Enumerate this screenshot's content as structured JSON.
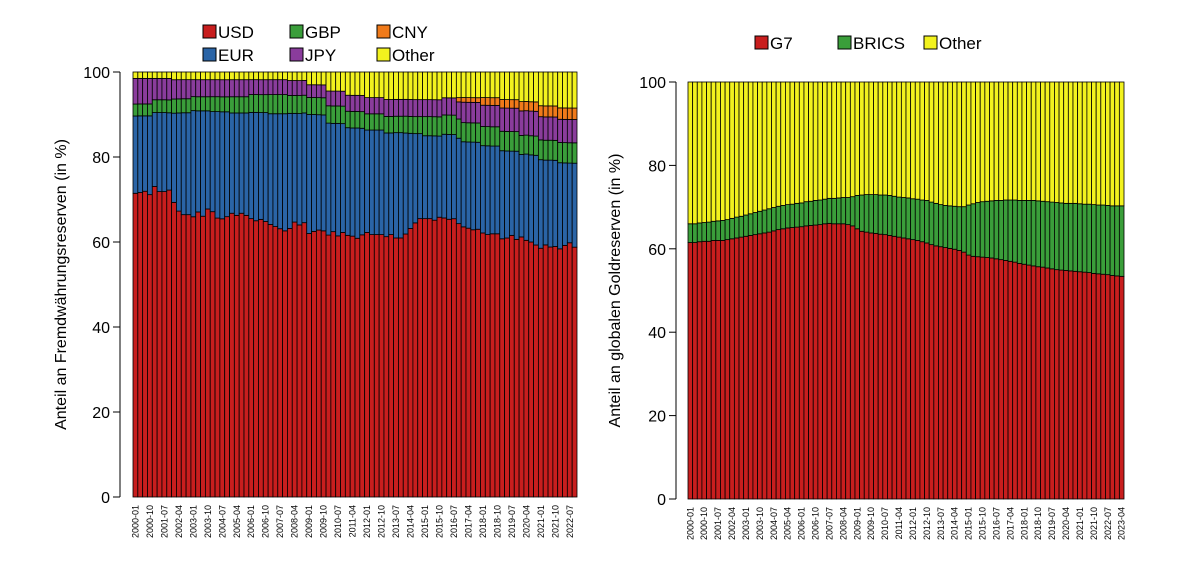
{
  "chart_data": [
    {
      "type": "bar",
      "stacked": true,
      "ylabel": "Anteil an Fremdwährungsreserven (in %)",
      "ylim": [
        0,
        100
      ],
      "yticks": [
        0,
        20,
        40,
        60,
        80,
        100
      ],
      "legend_placement": "top",
      "x_start": "2000-01",
      "x_end": "2022-10",
      "x_frequency": "quarterly",
      "xtick_labels": [
        "2000-01",
        "2000-10",
        "2001-07",
        "2002-04",
        "2003-01",
        "2003-10",
        "2004-07",
        "2005-04",
        "2006-01",
        "2006-10",
        "2007-07",
        "2008-04",
        "2009-01",
        "2009-10",
        "2010-07",
        "2011-04",
        "2012-01",
        "2012-10",
        "2013-07",
        "2014-04",
        "2015-01",
        "2015-10",
        "2016-07",
        "2017-04",
        "2018-01",
        "2018-10",
        "2019-07",
        "2020-04",
        "2021-01",
        "2021-10",
        "2022-07"
      ],
      "series": [
        {
          "name": "USD",
          "color": "#c81e1e",
          "values": [
            71.1,
            71.5,
            71.8,
            71.0,
            72.7,
            71.5,
            71.5,
            71.5,
            68.7,
            67.0,
            66.5,
            66.5,
            66.0,
            66.8,
            65.8,
            67.5,
            67.0,
            65.5,
            65.0,
            65.5,
            66.5,
            66.0,
            66.5,
            66.0,
            65.5,
            65.0,
            65.0,
            64.5,
            64.0,
            63.5,
            63.0,
            62.5,
            63.0,
            64.5,
            63.5,
            65.0,
            62.0,
            62.5,
            62.5,
            62.0,
            62.0,
            62.5,
            61.5,
            62.0,
            62.0,
            61.5,
            61.0,
            61.5,
            62.0,
            61.5,
            61.5,
            61.5,
            61.5,
            62.0,
            61.5,
            61.5,
            62.5,
            63.5,
            64.5,
            65.5,
            65.5,
            65.5,
            65.0,
            65.5,
            65.0,
            64.5,
            64.5,
            64.0,
            63.5,
            63.0,
            62.5,
            62.5,
            62.0,
            61.5,
            61.5,
            61.5,
            61.0,
            61.0,
            61.5,
            60.5,
            61.5,
            61.0,
            60.0,
            59.0,
            59.0,
            59.5,
            59.0,
            59.0,
            58.8,
            59.5,
            60.0,
            58.9
          ]
        },
        {
          "name": "EUR",
          "color": "#2a64a6",
          "values": [
            18.1,
            18.0,
            17.7,
            18.5,
            17.3,
            18.5,
            18.5,
            18.0,
            20.8,
            23.0,
            24.0,
            24.0,
            25.0,
            23.7,
            24.7,
            23.0,
            23.5,
            25.0,
            25.0,
            24.5,
            23.5,
            24.0,
            23.5,
            24.0,
            25.0,
            25.5,
            25.0,
            25.5,
            26.0,
            26.5,
            27.0,
            27.5,
            27.0,
            25.5,
            26.0,
            26.0,
            28.0,
            27.5,
            27.0,
            27.0,
            26.5,
            25.5,
            26.5,
            25.5,
            25.5,
            25.5,
            26.0,
            25.0,
            24.0,
            24.5,
            24.5,
            24.5,
            24.5,
            24.0,
            25.0,
            25.0,
            24.0,
            22.5,
            21.0,
            20.0,
            19.5,
            19.5,
            19.8,
            19.0,
            19.5,
            19.7,
            19.5,
            20.0,
            20.0,
            20.2,
            20.5,
            20.3,
            20.5,
            20.8,
            20.5,
            20.5,
            20.8,
            20.5,
            19.8,
            20.7,
            19.5,
            20.5,
            20.5,
            21.0,
            21.0,
            20.0,
            20.5,
            20.3,
            20.4,
            19.5,
            18.8,
            19.8
          ]
        },
        {
          "name": "GBP",
          "color": "#3a9e3a",
          "values": [
            2.8,
            2.8,
            2.8,
            2.8,
            3.0,
            3.0,
            3.0,
            3.0,
            3.3,
            3.3,
            3.3,
            3.3,
            3.3,
            3.3,
            3.3,
            3.3,
            3.5,
            3.5,
            3.5,
            3.5,
            3.8,
            3.8,
            3.8,
            3.8,
            4.2,
            4.2,
            4.2,
            4.2,
            4.5,
            4.5,
            4.5,
            4.5,
            4.2,
            4.2,
            4.2,
            4.2,
            4.0,
            4.0,
            4.0,
            4.0,
            4.1,
            4.1,
            4.1,
            4.1,
            3.9,
            3.9,
            3.9,
            3.9,
            3.8,
            3.8,
            3.8,
            3.8,
            3.9,
            3.9,
            3.9,
            3.9,
            4.0,
            4.0,
            4.0,
            4.0,
            4.5,
            4.5,
            4.5,
            4.5,
            4.5,
            4.5,
            4.5,
            4.5,
            4.5,
            4.5,
            4.5,
            4.5,
            4.5,
            4.5,
            4.5,
            4.5,
            4.6,
            4.6,
            4.6,
            4.6,
            4.5,
            4.5,
            4.5,
            4.5,
            4.7,
            4.7,
            4.7,
            4.7,
            4.8,
            4.8,
            4.8,
            4.8
          ]
        },
        {
          "name": "JPY",
          "color": "#8a3c9c",
          "values": [
            6.0,
            6.0,
            6.0,
            6.0,
            5.0,
            5.0,
            5.0,
            5.0,
            4.5,
            4.5,
            4.5,
            4.5,
            4.0,
            4.0,
            4.0,
            4.0,
            4.0,
            4.0,
            4.0,
            4.0,
            4.0,
            4.0,
            4.0,
            4.0,
            3.5,
            3.5,
            3.5,
            3.5,
            3.5,
            3.5,
            3.5,
            3.5,
            3.5,
            3.5,
            3.5,
            3.5,
            3.0,
            3.0,
            3.0,
            3.0,
            3.5,
            3.5,
            3.5,
            3.5,
            3.8,
            3.8,
            3.8,
            3.8,
            3.8,
            3.8,
            3.8,
            3.8,
            4.0,
            4.0,
            4.0,
            4.0,
            4.0,
            4.0,
            4.0,
            4.0,
            4.0,
            4.0,
            4.0,
            4.0,
            4.0,
            4.0,
            4.0,
            4.0,
            4.8,
            4.8,
            4.8,
            4.8,
            5.0,
            5.0,
            5.0,
            5.0,
            5.5,
            5.5,
            5.5,
            5.5,
            5.8,
            5.8,
            5.8,
            5.8,
            5.5,
            5.5,
            5.5,
            5.5,
            5.5,
            5.5,
            5.5,
            5.5
          ]
        },
        {
          "name": "CNY",
          "color": "#f07a1a",
          "values": [
            0,
            0,
            0,
            0,
            0,
            0,
            0,
            0,
            0,
            0,
            0,
            0,
            0,
            0,
            0,
            0,
            0,
            0,
            0,
            0,
            0,
            0,
            0,
            0,
            0,
            0,
            0,
            0,
            0,
            0,
            0,
            0,
            0,
            0,
            0,
            0,
            0,
            0,
            0,
            0,
            0,
            0,
            0,
            0,
            0,
            0,
            0,
            0,
            0,
            0,
            0,
            0,
            0,
            0,
            0,
            0,
            0,
            0,
            0,
            0,
            0,
            0,
            0,
            0,
            0,
            0,
            0,
            1.0,
            1.1,
            1.1,
            1.1,
            1.1,
            1.8,
            1.8,
            1.8,
            1.8,
            2.0,
            2.0,
            2.0,
            2.0,
            2.2,
            2.2,
            2.2,
            2.2,
            2.6,
            2.6,
            2.6,
            2.6,
            2.7,
            2.7,
            2.7,
            2.7
          ]
        },
        {
          "name": "Other",
          "color": "#f2f21e",
          "values": [
            1.5,
            1.5,
            1.5,
            1.5,
            1.5,
            1.5,
            1.5,
            1.5,
            1.8,
            1.8,
            1.8,
            1.8,
            1.8,
            1.8,
            1.8,
            1.8,
            1.8,
            1.8,
            1.8,
            1.8,
            1.8,
            1.8,
            1.8,
            1.8,
            1.8,
            1.8,
            1.8,
            1.8,
            1.8,
            1.8,
            1.8,
            1.8,
            2.0,
            2.0,
            2.0,
            2.0,
            3.0,
            3.0,
            3.0,
            3.0,
            4.5,
            4.5,
            4.5,
            4.5,
            5.5,
            5.5,
            5.5,
            5.5,
            6.0,
            6.0,
            6.0,
            6.0,
            6.5,
            6.5,
            6.5,
            6.5,
            6.5,
            6.5,
            6.5,
            6.5,
            6.5,
            6.5,
            6.5,
            6.5,
            6.0,
            6.0,
            6.0,
            6.0,
            6.0,
            6.0,
            6.0,
            6.0,
            6.0,
            6.0,
            6.0,
            6.0,
            6.5,
            6.5,
            6.5,
            6.5,
            7.0,
            7.0,
            7.0,
            7.0,
            8.0,
            8.0,
            8.0,
            8.0,
            8.5,
            8.5,
            8.5,
            8.5
          ]
        }
      ]
    },
    {
      "type": "bar",
      "stacked": true,
      "ylabel": "Anteil an globalen Goldreserven (in %)",
      "ylim": [
        0,
        100
      ],
      "yticks": [
        0,
        20,
        40,
        60,
        80,
        100
      ],
      "legend_placement": "top",
      "x_start": "2000-01",
      "x_end": "2023-04",
      "x_frequency": "quarterly",
      "xtick_labels": [
        "2000-01",
        "2000-10",
        "2001-07",
        "2002-04",
        "2003-01",
        "2003-10",
        "2004-07",
        "2005-04",
        "2006-01",
        "2006-10",
        "2007-07",
        "2008-04",
        "2009-01",
        "2009-10",
        "2010-07",
        "2011-04",
        "2012-01",
        "2012-10",
        "2013-07",
        "2014-04",
        "2015-01",
        "2015-10",
        "2016-07",
        "2017-04",
        "2018-01",
        "2018-10",
        "2019-07",
        "2020-04",
        "2021-01",
        "2021-10",
        "2022-07",
        "2023-04"
      ],
      "series": [
        {
          "name": "G7",
          "color": "#c81e1e",
          "values": [
            61.5,
            61.5,
            61.7,
            61.8,
            61.8,
            62,
            62,
            62,
            62.2,
            62.4,
            62.6,
            62.8,
            63,
            63.2,
            63.4,
            63.6,
            63.8,
            64,
            64.3,
            64.6,
            64.8,
            65,
            65.1,
            65.2,
            65.3,
            65.5,
            65.6,
            65.7,
            65.8,
            66,
            66.1,
            66,
            66,
            66,
            65.8,
            65.5,
            64.8,
            64.2,
            64,
            63.8,
            63.7,
            63.5,
            63.4,
            63.2,
            63,
            62.8,
            62.6,
            62.4,
            62.2,
            62,
            61.7,
            61.4,
            61,
            60.7,
            60.5,
            60.3,
            60.1,
            59.9,
            59.6,
            59.2,
            58.5,
            58.2,
            58.1,
            58,
            57.9,
            57.8,
            57.6,
            57.4,
            57.2,
            57,
            56.8,
            56.5,
            56.3,
            56.1,
            55.9,
            55.7,
            55.6,
            55.4,
            55.2,
            55,
            54.9,
            54.8,
            54.7,
            54.6,
            54.5,
            54.4,
            54.3,
            54.1,
            54,
            53.9,
            53.8,
            53.6,
            53.5,
            53.4
          ]
        },
        {
          "name": "BRICS",
          "color": "#3a9e3a",
          "values": [
            4.5,
            4.5,
            4.5,
            4.5,
            4.6,
            4.6,
            4.7,
            4.8,
            4.8,
            4.9,
            5,
            5,
            5.1,
            5.2,
            5.3,
            5.4,
            5.5,
            5.6,
            5.6,
            5.6,
            5.6,
            5.6,
            5.6,
            5.7,
            5.7,
            5.8,
            5.8,
            5.9,
            5.9,
            5.9,
            6,
            6.1,
            6.2,
            6.3,
            6.5,
            7,
            8,
            8.7,
            9,
            9.2,
            9.3,
            9.4,
            9.5,
            9.6,
            9.6,
            9.6,
            9.7,
            9.8,
            9.8,
            9.9,
            10,
            10.2,
            10.2,
            10.2,
            10.1,
            10.1,
            10.2,
            10.3,
            10.5,
            10.9,
            12,
            12.6,
            13,
            13.3,
            13.5,
            13.7,
            14,
            14.2,
            14.5,
            14.7,
            14.9,
            15.1,
            15.3,
            15.5,
            15.7,
            15.8,
            15.8,
            15.9,
            16,
            16.1,
            16.1,
            16.1,
            16.2,
            16.3,
            16.3,
            16.3,
            16.4,
            16.5,
            16.5,
            16.6,
            16.6,
            16.7,
            16.8,
            16.9
          ]
        },
        {
          "name": "Other",
          "color": "#f2f21e",
          "values": [
            34,
            34,
            33.8,
            33.7,
            33.6,
            33.4,
            33.3,
            33.2,
            33,
            32.7,
            32.4,
            32.2,
            31.9,
            31.6,
            31.3,
            31,
            30.7,
            30.4,
            30.1,
            29.8,
            29.6,
            29.4,
            29.3,
            29.1,
            29,
            28.7,
            28.6,
            28.4,
            28.3,
            28.1,
            27.9,
            27.9,
            27.8,
            27.7,
            27.7,
            27.5,
            27.2,
            27.1,
            27,
            27,
            27,
            27.1,
            27.1,
            27.2,
            27.4,
            27.6,
            27.7,
            27.8,
            28,
            28.1,
            28.3,
            28.4,
            28.8,
            29.1,
            29.4,
            29.6,
            29.7,
            29.8,
            29.9,
            29.9,
            29.5,
            29.2,
            28.9,
            28.7,
            28.6,
            28.5,
            28.4,
            28.4,
            28.3,
            28.3,
            28.3,
            28.4,
            28.4,
            28.4,
            28.4,
            28.5,
            28.6,
            28.7,
            28.8,
            28.9,
            29,
            29.1,
            29.1,
            29.1,
            29.2,
            29.3,
            29.3,
            29.4,
            29.5,
            29.5,
            29.6,
            29.7,
            29.7,
            29.7
          ]
        }
      ]
    }
  ]
}
